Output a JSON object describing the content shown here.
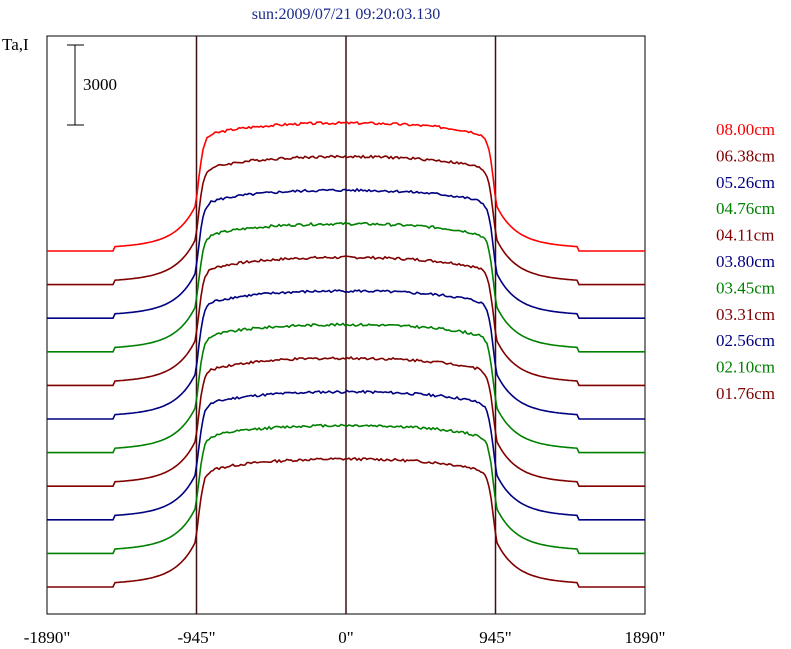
{
  "chart_data": {
    "type": "line",
    "title": "sun:2009/07/21 09:20:03.130",
    "ylabel": "Ta,I",
    "scale_bar_label": "3000",
    "scale_bar_value": 3000,
    "xlim": [
      -1890,
      1890
    ],
    "x_ticks": [
      -1890,
      -945,
      0,
      945,
      1890
    ],
    "x_tick_labels": [
      "-1890\"",
      "-945\"",
      "0\"",
      "945\"",
      "1890\""
    ],
    "vertical_lines": [
      -945,
      0,
      945
    ],
    "grid": false,
    "legend_position": "right",
    "series": [
      {
        "name": "08.00cm",
        "color": "#ff0000",
        "base_level": 11,
        "disk_amplitude": 5.0
      },
      {
        "name": "06.38cm",
        "color": "#800000",
        "base_level": 10,
        "disk_amplitude": 5.0
      },
      {
        "name": "05.26cm",
        "color": "#000080",
        "base_level": 9,
        "disk_amplitude": 5.0
      },
      {
        "name": "04.76cm",
        "color": "#008000",
        "base_level": 8,
        "disk_amplitude": 5.0
      },
      {
        "name": "04.11cm",
        "color": "#800000",
        "base_level": 7,
        "disk_amplitude": 5.0
      },
      {
        "name": "03.80cm",
        "color": "#000080",
        "base_level": 6,
        "disk_amplitude": 5.0
      },
      {
        "name": "03.45cm",
        "color": "#008000",
        "base_level": 5,
        "disk_amplitude": 5.0
      },
      {
        "name": "03.31cm",
        "color": "#800000",
        "base_level": 4,
        "disk_amplitude": 5.0
      },
      {
        "name": "02.56cm",
        "color": "#000080",
        "base_level": 3,
        "disk_amplitude": 5.0
      },
      {
        "name": "02.10cm",
        "color": "#008000",
        "base_level": 2,
        "disk_amplitude": 5.0
      },
      {
        "name": "01.76cm",
        "color": "#800000",
        "base_level": 1,
        "disk_amplitude": 5.0
      }
    ]
  }
}
